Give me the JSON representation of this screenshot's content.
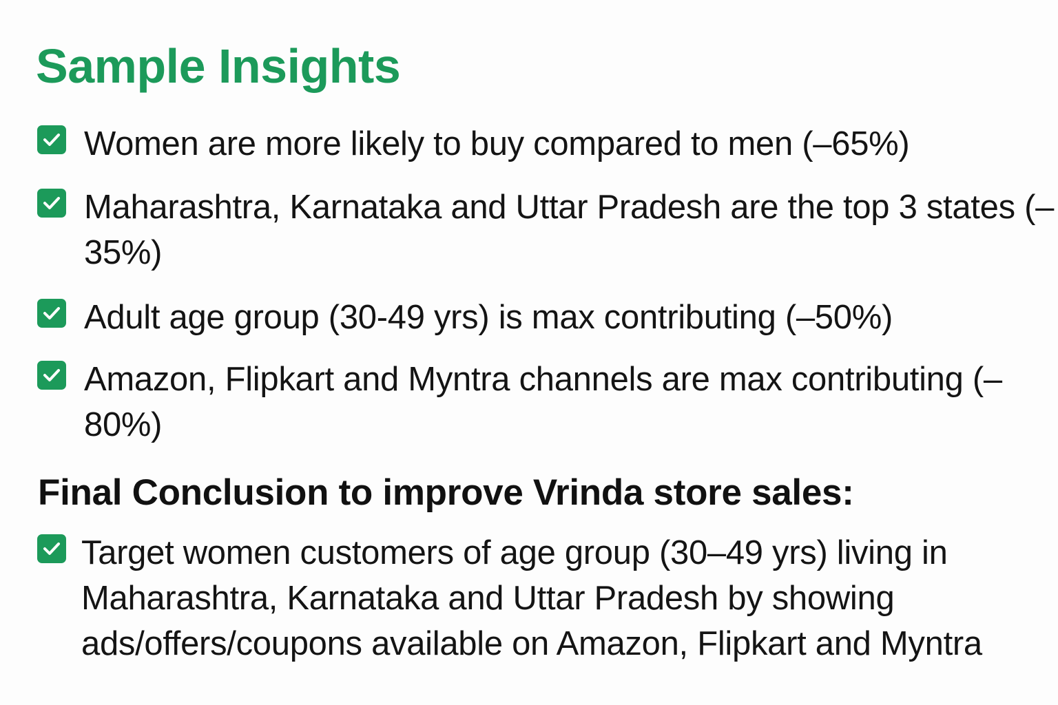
{
  "title": "Sample Insights",
  "colors": {
    "accent": "#1c9a5a",
    "text": "#141414",
    "background": "#fdfdfd"
  },
  "insights": [
    {
      "icon": "checkbox-checked-icon",
      "text": "Women are more likely to buy compared to men (–65%)"
    },
    {
      "icon": "checkbox-checked-icon",
      "text": "Maharashtra, Karnataka and Uttar Pradesh are the top 3 states (–35%)"
    },
    {
      "icon": "checkbox-checked-icon",
      "text": "Adult age group (30-49 yrs) is max contributing (–50%)"
    },
    {
      "icon": "checkbox-checked-icon",
      "text": "Amazon, Flipkart and Myntra channels are max contributing (–80%)"
    }
  ],
  "conclusion": {
    "heading": "Final Conclusion to improve Vrinda store sales:",
    "items": [
      {
        "icon": "checkbox-checked-icon",
        "text": "Target women customers of age group (30–49 yrs) living in Maharashtra, Karnataka and Uttar Pradesh by showing ads/offers/coupons available on Amazon, Flipkart and Myntra"
      }
    ]
  }
}
